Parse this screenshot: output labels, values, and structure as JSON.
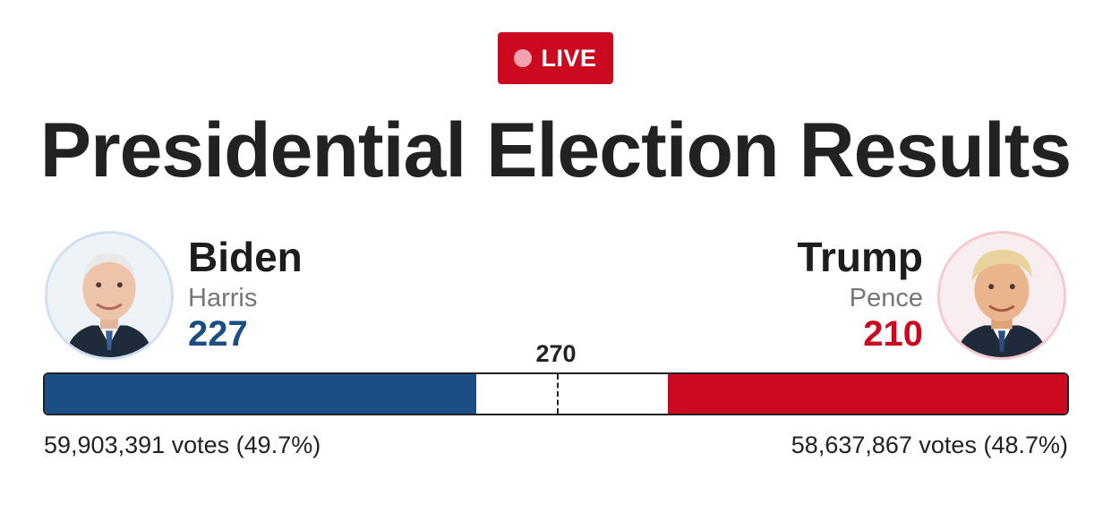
{
  "badge": {
    "label": "LIVE",
    "color": "#cc0a1f"
  },
  "title": "Presidential Election Results",
  "threshold": {
    "label": "270",
    "value": 270
  },
  "total_electoral_votes": 538,
  "candidates": {
    "dem": {
      "name": "Biden",
      "running_mate": "Harris",
      "electoral_votes": "227",
      "electoral_value": 227,
      "popular_votes": "59,903,391 votes (49.7%)",
      "color": "#1b4e85",
      "photo_icon": "biden-portrait"
    },
    "rep": {
      "name": "Trump",
      "running_mate": "Pence",
      "electoral_votes": "210",
      "electoral_value": 210,
      "popular_votes": "58,637,867 votes (48.7%)",
      "color": "#cc0a1f",
      "photo_icon": "trump-portrait"
    }
  }
}
